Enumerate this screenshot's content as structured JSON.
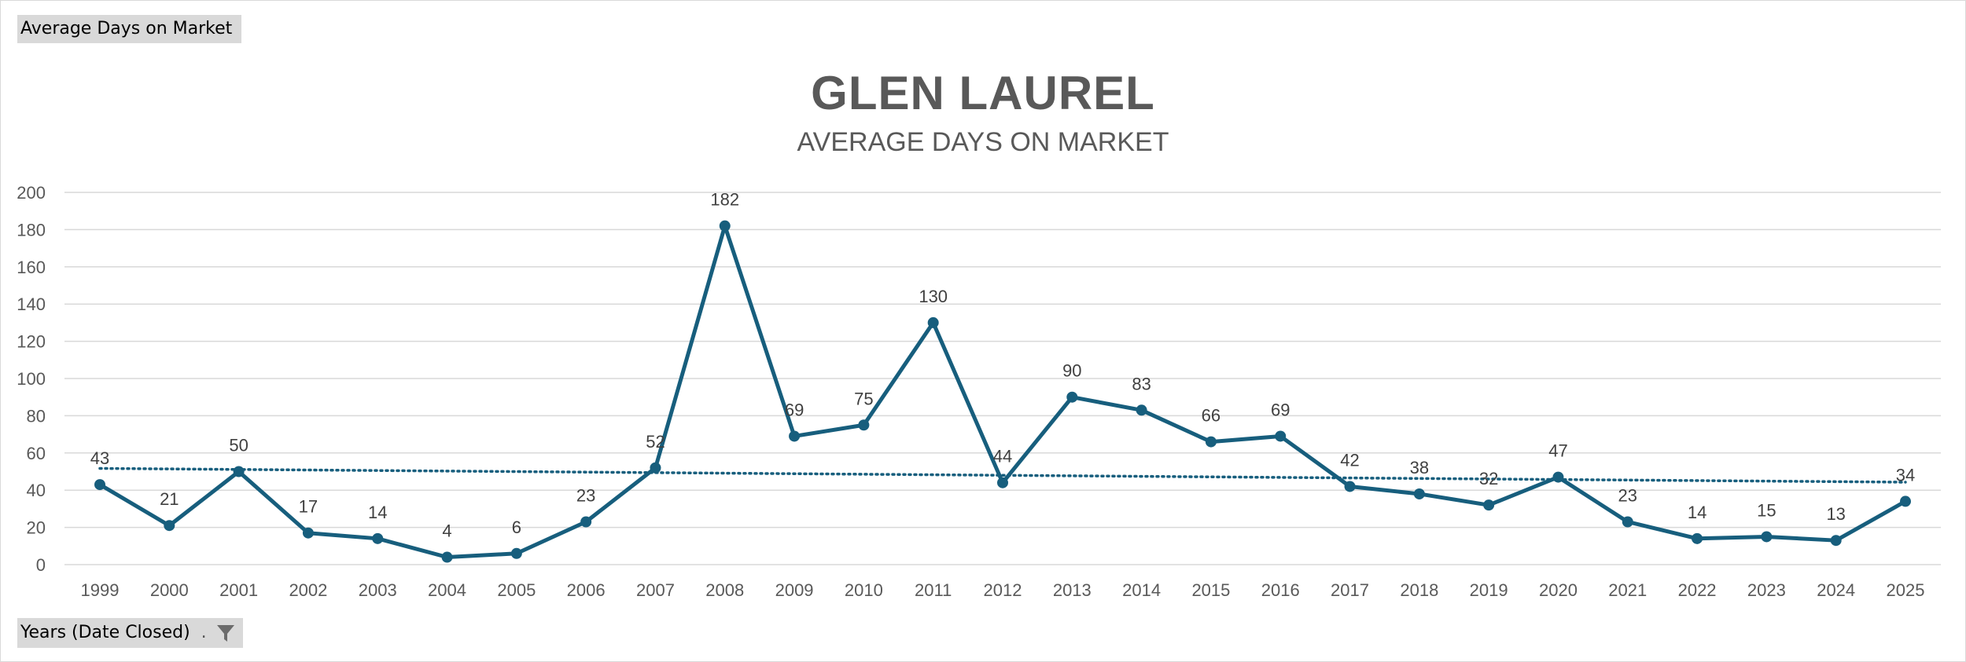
{
  "pivot": {
    "value_field": "Average  Days on Market",
    "axis_field": "Years (Date Closed)"
  },
  "chart_data": {
    "type": "line",
    "title": "GLEN LAUREL",
    "subtitle": "AVERAGE DAYS ON MARKET",
    "categories": [
      "1999",
      "2000",
      "2001",
      "2002",
      "2003",
      "2004",
      "2005",
      "2006",
      "2007",
      "2008",
      "2009",
      "2010",
      "2011",
      "2012",
      "2013",
      "2014",
      "2015",
      "2016",
      "2017",
      "2018",
      "2019",
      "2020",
      "2021",
      "2022",
      "2023",
      "2024",
      "2025"
    ],
    "series": [
      {
        "values": [
          43,
          21,
          50,
          17,
          14,
          4,
          6,
          23,
          52,
          182,
          69,
          75,
          130,
          44,
          90,
          83,
          66,
          69,
          42,
          38,
          32,
          47,
          23,
          14,
          15,
          13,
          34
        ],
        "color": "#175e7d",
        "data_labels": true,
        "markers": true
      }
    ],
    "trendline": {
      "type": "linear",
      "style": "dotted",
      "color": "#175e7d"
    },
    "yticks": [
      0,
      20,
      40,
      60,
      80,
      100,
      120,
      140,
      160,
      180,
      200
    ],
    "ylim": [
      0,
      200
    ],
    "grid": true,
    "xlabel": "",
    "ylabel": ""
  },
  "colors": {
    "gridline": "#d9d9d9",
    "title": "#595959",
    "field_button": "#d9d9d9"
  },
  "icons": {
    "filter": "filter-funnel-icon"
  }
}
